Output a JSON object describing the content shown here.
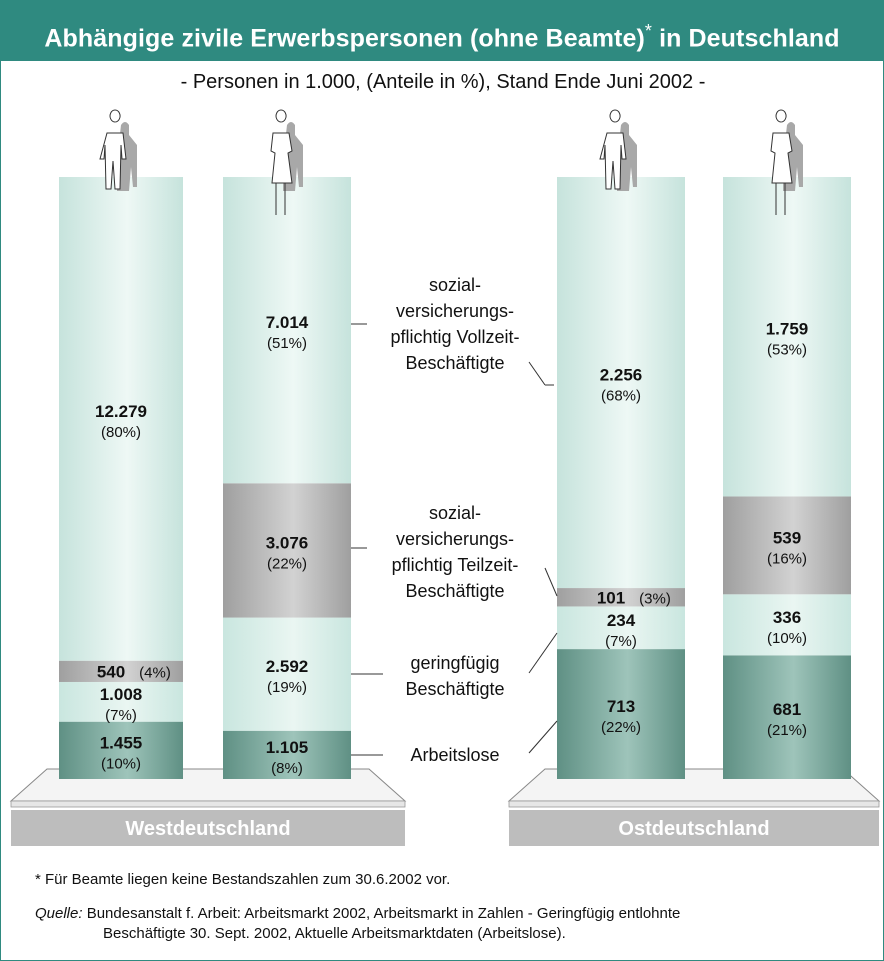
{
  "title": "Abhängige zivile Erwerbspersonen (ohne Beamte)",
  "title_mark": "*",
  "title_suffix": "in Deutschland",
  "subtitle": "- Personen in 1.000, (Anteile in %), Stand Ende Juni 2002 -",
  "colors": {
    "frame": "#2f8a80",
    "vollzeit": "#d4ece6",
    "teilzeit": "#b3b3b3",
    "geringfuegig": "#d4ece6",
    "arbeitslose": "#7aa89d",
    "base_label_bg": "#bdbdbd"
  },
  "regions": [
    {
      "label": "Westdeutschland"
    },
    {
      "label": "Ostdeutschland"
    }
  ],
  "category_labels": {
    "vollzeit": [
      "sozial-",
      "versicherungs-",
      "pflichtig Vollzeit-",
      "Beschäftigte"
    ],
    "teilzeit": [
      "sozial-",
      "versicherungs-",
      "pflichtig Teilzeit-",
      "Beschäftigte"
    ],
    "geringfuegig": [
      "geringfügig",
      "Beschäftigte"
    ],
    "arbeitslose": [
      "Arbeitslose"
    ]
  },
  "chart_data": {
    "type": "bar",
    "stacked": true,
    "unit": "Personen in 1.000",
    "categories": [
      "Westdeutschland Männer",
      "Westdeutschland Frauen",
      "Ostdeutschland Männer",
      "Ostdeutschland Frauen"
    ],
    "series": [
      {
        "name": "Arbeitslose",
        "values": [
          1455,
          1105,
          713,
          681
        ],
        "labels": [
          "1.455",
          "1.105",
          "713",
          "681"
        ],
        "pct": [
          "(10%)",
          "(8%)",
          "(22%)",
          "(21%)"
        ]
      },
      {
        "name": "geringfügig Beschäftigte",
        "values": [
          1008,
          2592,
          234,
          336
        ],
        "labels": [
          "1.008",
          "2.592",
          "234",
          "336"
        ],
        "pct": [
          "(7%)",
          "(19%)",
          "(7%)",
          "(10%)"
        ]
      },
      {
        "name": "sozialversicherungspflichtig Teilzeit-Beschäftigte",
        "values": [
          540,
          3076,
          101,
          539
        ],
        "labels": [
          "540",
          "3.076",
          "101",
          "539"
        ],
        "pct": [
          "(4%)",
          "(22%)",
          "(3%)",
          "(16%)"
        ]
      },
      {
        "name": "sozialversicherungspflichtig Vollzeit-Beschäftigte",
        "values": [
          12279,
          7014,
          2256,
          1759
        ],
        "labels": [
          "12.279",
          "7.014",
          "2.256",
          "1.759"
        ],
        "pct": [
          "(80%)",
          "(51%)",
          "(68%)",
          "(53%)"
        ]
      }
    ]
  },
  "footnote": "* Für Beamte liegen keine Bestandszahlen zum 30.6.2002 vor.",
  "source_label": "Quelle:",
  "source_line1": "Bundesanstalt f. Arbeit: Arbeitsmarkt 2002, Arbeitsmarkt in Zahlen - Geringfügig entlohnte",
  "source_line2": "Beschäftigte 30. Sept. 2002, Aktuelle Arbeitsmarktdaten (Arbeitslose)."
}
